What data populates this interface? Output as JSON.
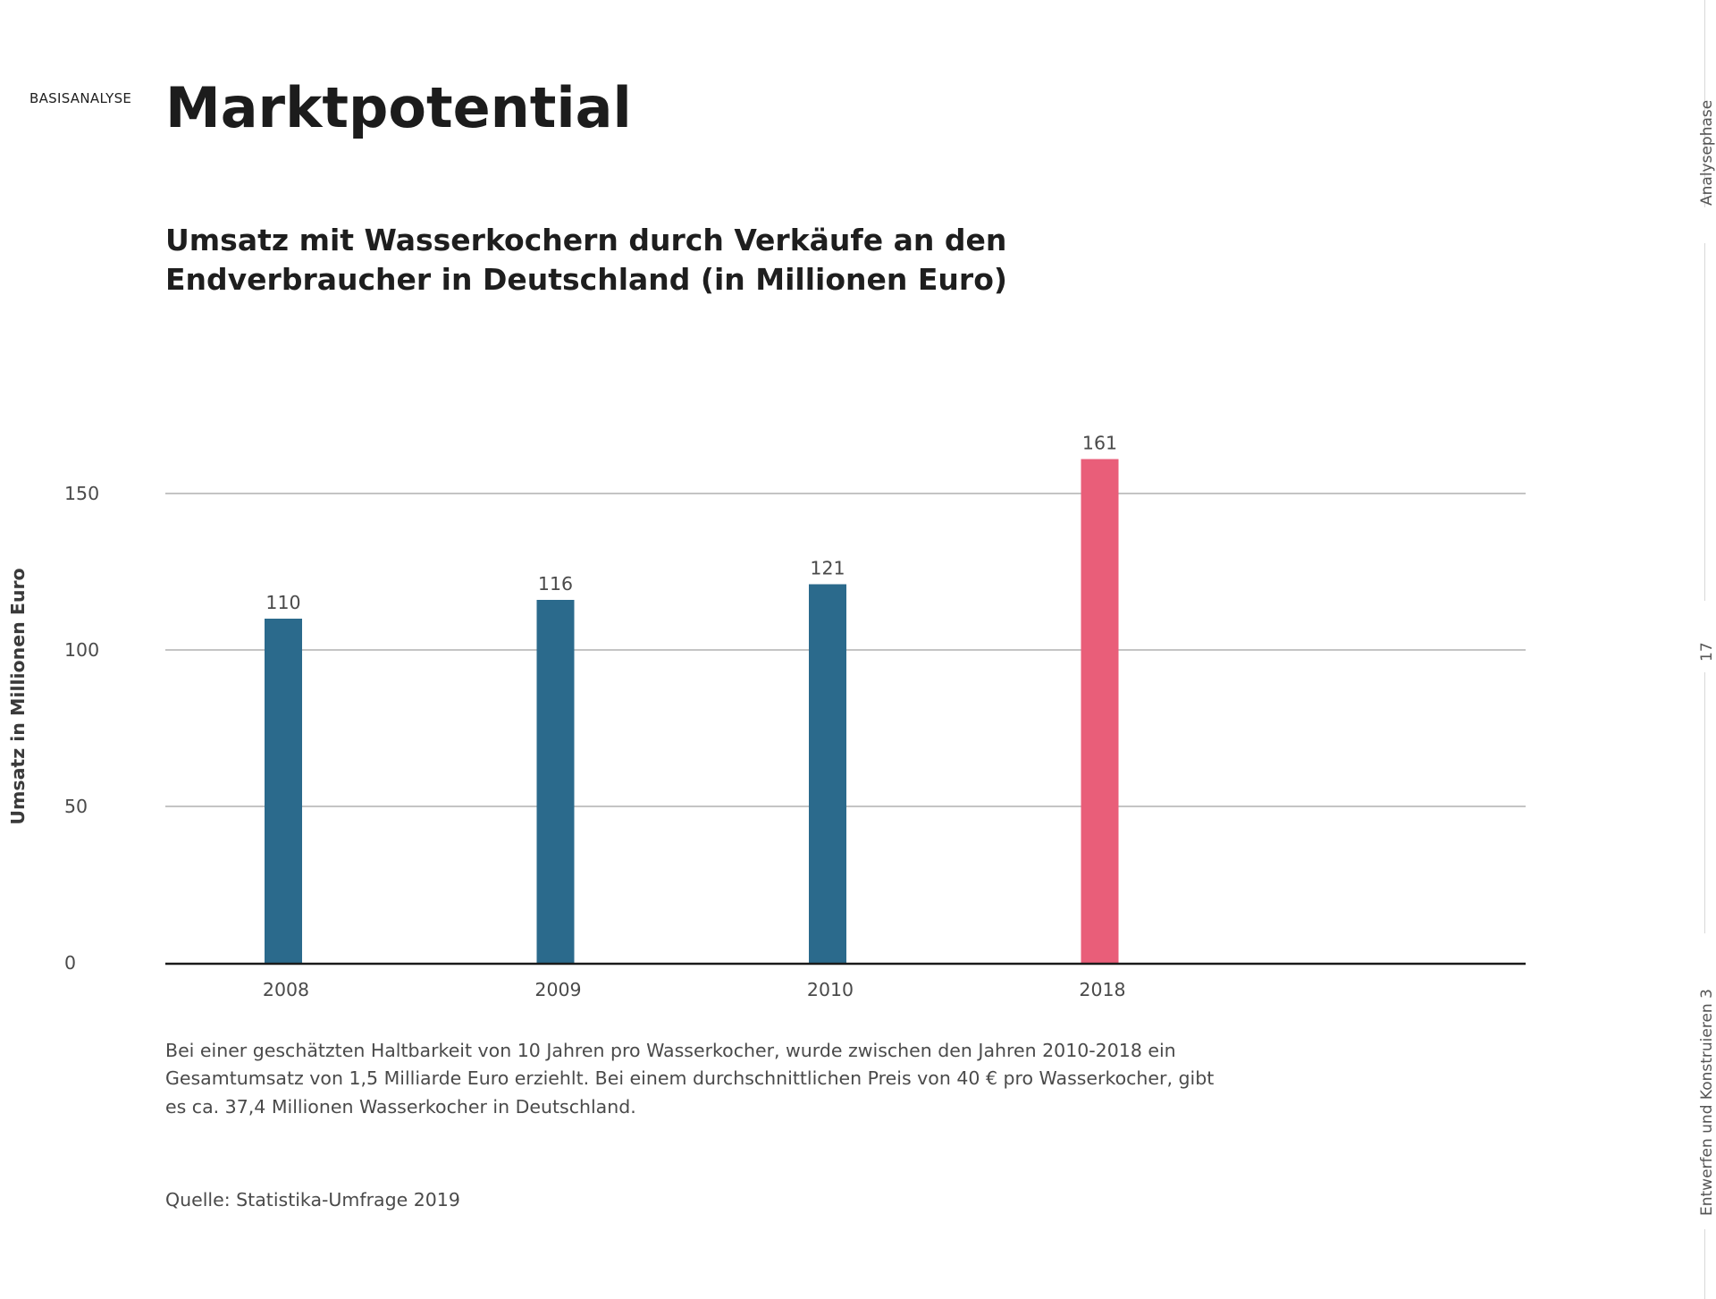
{
  "header": {
    "section_label": "BASISANALYSE",
    "title": "Marktpotential"
  },
  "chart_data": {
    "type": "bar",
    "title": "Umsatz mit Wasserkochern durch Verkäufe an den Endverbraucher in Deutschland (in Millionen Euro)",
    "xlabel": "",
    "ylabel": "Umsatz in Millionen Euro",
    "categories": [
      "2008",
      "2009",
      "2010",
      "2018"
    ],
    "values": [
      110,
      116,
      121,
      161
    ],
    "data_labels": [
      "110",
      "116",
      "121",
      "161"
    ],
    "bar_colors": [
      "#2b6a8c",
      "#2b6a8c",
      "#2b6a8c",
      "#e95e79"
    ],
    "yticks": [
      0,
      50,
      100,
      150
    ],
    "ylim": [
      0,
      165
    ],
    "grid": true,
    "legend": "none"
  },
  "body": {
    "description": "Bei einer geschätzten Haltbarkeit von 10 Jahren pro Wasserkocher, wurde zwischen den Jahren 2010-2018 ein Gesamtumsatz von 1,5 Milliarde Euro erziehlt. Bei einem durchschnittlichen Preis von 40 € pro Wasserkocher, gibt es ca. 37,4 Millionen Wasserkocher in Deutschland.",
    "source": "Quelle: Statistika-Umfrage 2019"
  },
  "sidebar": {
    "phase": "Analysephase",
    "page_number": "17",
    "course": "Entwerfen und Konstruieren 3"
  }
}
